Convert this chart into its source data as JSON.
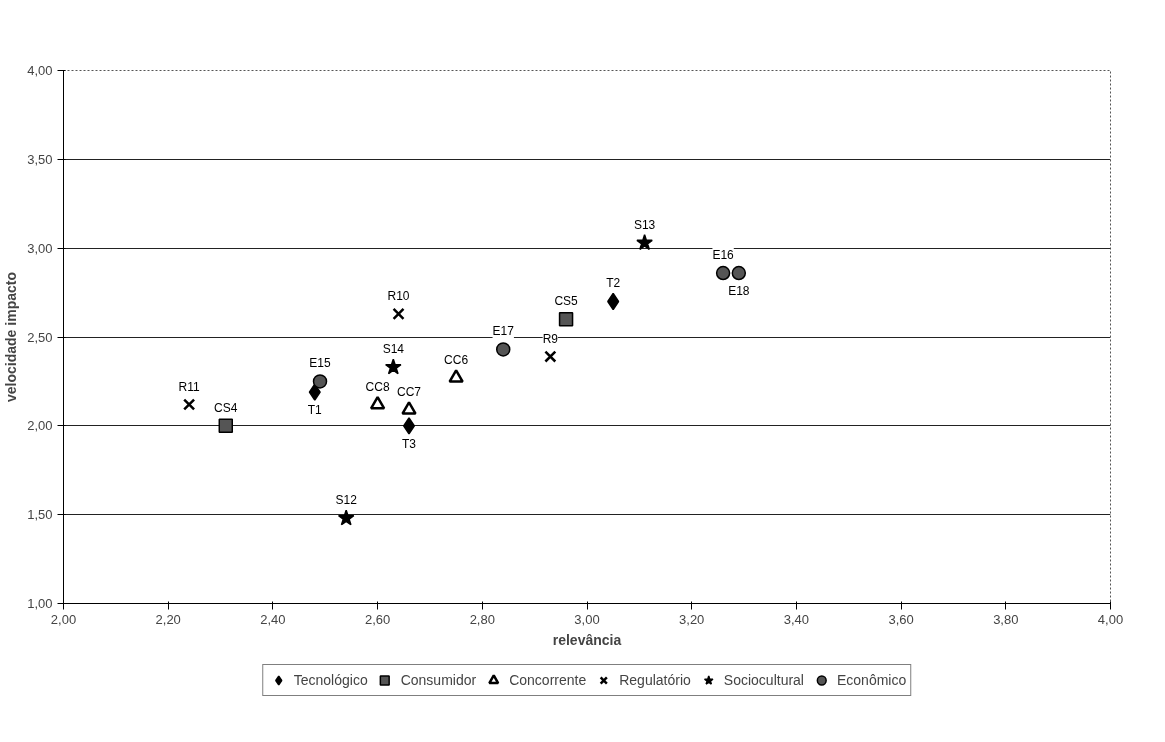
{
  "chart_data": {
    "type": "scatter",
    "xlabel": "relevância",
    "ylabel": "velocidade impacto",
    "xlim": [
      2,
      4
    ],
    "ylim": [
      1,
      4
    ],
    "xticks": [
      {
        "value": 2,
        "label": "2,00"
      },
      {
        "value": 2.2,
        "label": "2,20"
      },
      {
        "value": 2.4,
        "label": "2,40"
      },
      {
        "value": 2.6,
        "label": "2,60"
      },
      {
        "value": 2.8,
        "label": "2,80"
      },
      {
        "value": 3,
        "label": "3,00"
      },
      {
        "value": 3.2,
        "label": "3,20"
      },
      {
        "value": 3.4,
        "label": "3,40"
      },
      {
        "value": 3.6,
        "label": "3,60"
      },
      {
        "value": 3.8,
        "label": "3,80"
      },
      {
        "value": 4,
        "label": "4,00"
      }
    ],
    "yticks": [
      {
        "value": 1,
        "label": "1,00"
      },
      {
        "value": 1.5,
        "label": "1,50"
      },
      {
        "value": 2,
        "label": "2,00"
      },
      {
        "value": 2.5,
        "label": "2,50"
      },
      {
        "value": 3,
        "label": "3,00"
      },
      {
        "value": 3.5,
        "label": "3,50"
      },
      {
        "value": 4,
        "label": "4,00"
      }
    ],
    "grid": "y",
    "legend": "bottom",
    "series": [
      {
        "name": "Tecnológico",
        "color": "#000000",
        "marker": "diamond",
        "x": [
          2.48,
          3.05,
          2.66
        ],
        "values": [
          2.19,
          2.7,
          2.0
        ],
        "value_labels": [
          "T1",
          "T2",
          "T3"
        ]
      },
      {
        "name": "Consumidor",
        "color": "#000000",
        "marker": "square",
        "x": [
          2.31,
          2.96
        ],
        "values": [
          2.0,
          2.6
        ],
        "value_labels": [
          "CS4",
          "CS5"
        ]
      },
      {
        "name": "Concorrente",
        "color": "#000000",
        "marker": "triangle",
        "x": [
          2.75,
          2.66,
          2.6
        ],
        "values": [
          2.27,
          2.09,
          2.12
        ],
        "value_labels": [
          "CC6",
          "CC7",
          "CC8"
        ]
      },
      {
        "name": "Regulatório",
        "color": "#000000",
        "marker": "cross",
        "x": [
          2.93,
          2.64,
          2.24
        ],
        "values": [
          2.39,
          2.63,
          2.12
        ],
        "value_labels": [
          "R9",
          "R10",
          "R11"
        ]
      },
      {
        "name": "Sociocultural",
        "color": "#000000",
        "marker": "star",
        "x": [
          2.54,
          3.11,
          2.63
        ],
        "values": [
          1.48,
          3.03,
          2.33
        ],
        "value_labels": [
          "S12",
          "S13",
          "S14"
        ]
      },
      {
        "name": "Econômico",
        "color": "#000000",
        "marker": "circle",
        "x": [
          2.49,
          3.26,
          2.84,
          3.29
        ],
        "values": [
          2.25,
          2.86,
          2.43,
          2.86
        ],
        "value_labels": [
          "E15",
          "E16",
          "E17",
          "E18"
        ]
      }
    ]
  }
}
